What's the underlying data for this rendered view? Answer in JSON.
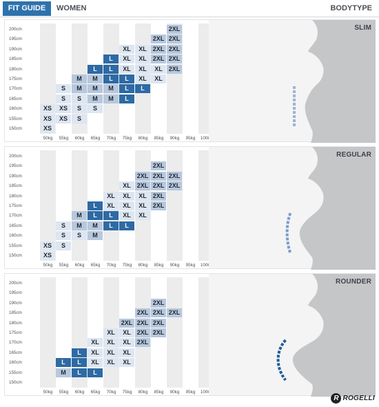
{
  "header": {
    "fit_guide": "FIT GUIDE",
    "women": "WOMEN",
    "bodytype": "BODYTYPE"
  },
  "colors": {
    "size_light": "#dde6f1",
    "size_mid": "#b7c8de",
    "size_dark": "#2e6aa4",
    "brand_blue": "#2e72ad",
    "silhouette": "#c5c6c8",
    "slim_curve": "#9db2d1",
    "regular_curve": "#7d9cc8",
    "rounder_curve": "#1e5f99"
  },
  "weights": [
    "50kg",
    "55kg",
    "60kg",
    "65kg",
    "70kg",
    "75kg",
    "80kg",
    "85kg",
    "90kg",
    "95kg",
    "100kg"
  ],
  "heights": [
    "200cm",
    "195cm",
    "190cm",
    "185cm",
    "180cm",
    "175cm",
    "170cm",
    "165cm",
    "160cm",
    "155cm",
    "150cm"
  ],
  "sections": [
    {
      "name": "SLIM",
      "curve": "slim",
      "rows": [
        [
          "",
          "",
          "",
          "",
          "",
          "",
          "",
          "",
          "2XL",
          "",
          ""
        ],
        [
          "",
          "",
          "",
          "",
          "",
          "",
          "",
          "2XL",
          "2XL",
          "",
          ""
        ],
        [
          "",
          "",
          "",
          "",
          "",
          "XL",
          "XL",
          "2XL",
          "2XL",
          "",
          ""
        ],
        [
          "",
          "",
          "",
          "",
          "L",
          "XL",
          "XL",
          "2XL",
          "2XL",
          "",
          ""
        ],
        [
          "",
          "",
          "",
          "L",
          "L",
          "XL",
          "XL",
          "XL",
          "2XL",
          "",
          ""
        ],
        [
          "",
          "",
          "M",
          "M",
          "L",
          "L",
          "XL",
          "XL",
          "",
          "",
          ""
        ],
        [
          "",
          "S",
          "M",
          "M",
          "M",
          "L",
          "L",
          "",
          "",
          "",
          ""
        ],
        [
          "",
          "S",
          "S",
          "M",
          "M",
          "L",
          "",
          "",
          "",
          "",
          ""
        ],
        [
          "XS",
          "XS",
          "S",
          "S",
          "",
          "",
          "",
          "",
          "",
          "",
          ""
        ],
        [
          "XS",
          "XS",
          "S",
          "",
          "",
          "",
          "",
          "",
          "",
          "",
          ""
        ],
        [
          "XS",
          "",
          "",
          "",
          "",
          "",
          "",
          "",
          "",
          "",
          ""
        ]
      ],
      "tones": [
        [
          0,
          0,
          0,
          0,
          0,
          0,
          0,
          0,
          2,
          0,
          0
        ],
        [
          0,
          0,
          0,
          0,
          0,
          0,
          0,
          2,
          2,
          0,
          0
        ],
        [
          0,
          0,
          0,
          0,
          0,
          1,
          1,
          2,
          2,
          0,
          0
        ],
        [
          0,
          0,
          0,
          0,
          3,
          1,
          1,
          2,
          2,
          0,
          0
        ],
        [
          0,
          0,
          0,
          3,
          3,
          1,
          1,
          1,
          2,
          0,
          0
        ],
        [
          0,
          0,
          2,
          2,
          3,
          3,
          1,
          1,
          0,
          0,
          0
        ],
        [
          0,
          1,
          2,
          2,
          2,
          3,
          3,
          0,
          0,
          0,
          0
        ],
        [
          0,
          1,
          1,
          2,
          2,
          3,
          0,
          0,
          0,
          0,
          0
        ],
        [
          1,
          1,
          1,
          1,
          0,
          0,
          0,
          0,
          0,
          0,
          0
        ],
        [
          1,
          1,
          1,
          0,
          0,
          0,
          0,
          0,
          0,
          0,
          0
        ],
        [
          1,
          0,
          0,
          0,
          0,
          0,
          0,
          0,
          0,
          0,
          0
        ]
      ]
    },
    {
      "name": "REGULAR",
      "curve": "regular",
      "rows": [
        [
          "",
          "",
          "",
          "",
          "",
          "",
          "",
          "",
          "",
          "",
          ""
        ],
        [
          "",
          "",
          "",
          "",
          "",
          "",
          "",
          "2XL",
          "",
          "",
          ""
        ],
        [
          "",
          "",
          "",
          "",
          "",
          "",
          "2XL",
          "2XL",
          "2XL",
          "",
          ""
        ],
        [
          "",
          "",
          "",
          "",
          "",
          "XL",
          "2XL",
          "2XL",
          "2XL",
          "",
          ""
        ],
        [
          "",
          "",
          "",
          "",
          "XL",
          "XL",
          "XL",
          "2XL",
          "",
          "",
          ""
        ],
        [
          "",
          "",
          "",
          "L",
          "XL",
          "XL",
          "XL",
          "2XL",
          "",
          "",
          ""
        ],
        [
          "",
          "",
          "M",
          "L",
          "L",
          "XL",
          "XL",
          "",
          "",
          "",
          ""
        ],
        [
          "",
          "S",
          "M",
          "M",
          "L",
          "L",
          "",
          "",
          "",
          "",
          ""
        ],
        [
          "",
          "S",
          "S",
          "M",
          "",
          "",
          "",
          "",
          "",
          "",
          ""
        ],
        [
          "XS",
          "S",
          "",
          "",
          "",
          "",
          "",
          "",
          "",
          "",
          ""
        ],
        [
          "XS",
          "",
          "",
          "",
          "",
          "",
          "",
          "",
          "",
          "",
          ""
        ]
      ],
      "tones": [
        [
          0,
          0,
          0,
          0,
          0,
          0,
          0,
          0,
          0,
          0,
          0
        ],
        [
          0,
          0,
          0,
          0,
          0,
          0,
          0,
          2,
          0,
          0,
          0
        ],
        [
          0,
          0,
          0,
          0,
          0,
          0,
          2,
          2,
          2,
          0,
          0
        ],
        [
          0,
          0,
          0,
          0,
          0,
          1,
          2,
          2,
          2,
          0,
          0
        ],
        [
          0,
          0,
          0,
          0,
          1,
          1,
          1,
          2,
          0,
          0,
          0
        ],
        [
          0,
          0,
          0,
          3,
          1,
          1,
          1,
          2,
          0,
          0,
          0
        ],
        [
          0,
          0,
          2,
          3,
          3,
          1,
          1,
          0,
          0,
          0,
          0
        ],
        [
          0,
          1,
          2,
          2,
          3,
          3,
          0,
          0,
          0,
          0,
          0
        ],
        [
          0,
          1,
          1,
          2,
          0,
          0,
          0,
          0,
          0,
          0,
          0
        ],
        [
          1,
          1,
          0,
          0,
          0,
          0,
          0,
          0,
          0,
          0,
          0
        ],
        [
          1,
          0,
          0,
          0,
          0,
          0,
          0,
          0,
          0,
          0,
          0
        ]
      ]
    },
    {
      "name": "ROUNDER",
      "curve": "rounder",
      "rows": [
        [
          "",
          "",
          "",
          "",
          "",
          "",
          "",
          "",
          "",
          "",
          ""
        ],
        [
          "",
          "",
          "",
          "",
          "",
          "",
          "",
          "",
          "",
          "",
          ""
        ],
        [
          "",
          "",
          "",
          "",
          "",
          "",
          "",
          "2XL",
          "",
          "",
          ""
        ],
        [
          "",
          "",
          "",
          "",
          "",
          "",
          "2XL",
          "2XL",
          "2XL",
          "",
          ""
        ],
        [
          "",
          "",
          "",
          "",
          "",
          "2XL",
          "2XL",
          "2XL",
          "",
          "",
          ""
        ],
        [
          "",
          "",
          "",
          "",
          "XL",
          "XL",
          "2XL",
          "2XL",
          "",
          "",
          ""
        ],
        [
          "",
          "",
          "",
          "XL",
          "XL",
          "XL",
          "2XL",
          "",
          "",
          "",
          ""
        ],
        [
          "",
          "",
          "L",
          "XL",
          "XL",
          "XL",
          "",
          "",
          "",
          "",
          ""
        ],
        [
          "",
          "L",
          "L",
          "XL",
          "XL",
          "XL",
          "",
          "",
          "",
          "",
          ""
        ],
        [
          "",
          "M",
          "L",
          "L",
          "",
          "",
          "",
          "",
          "",
          "",
          ""
        ],
        [
          "",
          "",
          "",
          "",
          "",
          "",
          "",
          "",
          "",
          "",
          ""
        ]
      ],
      "tones": [
        [
          0,
          0,
          0,
          0,
          0,
          0,
          0,
          0,
          0,
          0,
          0
        ],
        [
          0,
          0,
          0,
          0,
          0,
          0,
          0,
          0,
          0,
          0,
          0
        ],
        [
          0,
          0,
          0,
          0,
          0,
          0,
          0,
          2,
          0,
          0,
          0
        ],
        [
          0,
          0,
          0,
          0,
          0,
          0,
          2,
          2,
          2,
          0,
          0
        ],
        [
          0,
          0,
          0,
          0,
          0,
          2,
          2,
          2,
          0,
          0,
          0
        ],
        [
          0,
          0,
          0,
          0,
          1,
          1,
          2,
          2,
          0,
          0,
          0
        ],
        [
          0,
          0,
          0,
          1,
          1,
          1,
          2,
          0,
          0,
          0,
          0
        ],
        [
          0,
          0,
          3,
          1,
          1,
          1,
          0,
          0,
          0,
          0,
          0
        ],
        [
          0,
          3,
          3,
          1,
          1,
          1,
          0,
          0,
          0,
          0,
          0
        ],
        [
          0,
          2,
          3,
          3,
          0,
          0,
          0,
          0,
          0,
          0,
          0
        ],
        [
          0,
          0,
          0,
          0,
          0,
          0,
          0,
          0,
          0,
          0,
          0
        ]
      ]
    }
  ],
  "footer": {
    "logo_letter": "R",
    "logo_text": "ROGELLI"
  }
}
